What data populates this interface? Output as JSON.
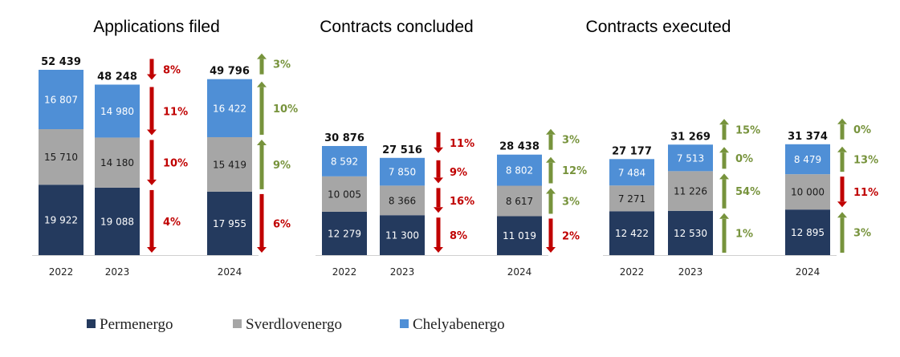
{
  "colors": {
    "Permenergo": "#243a5e",
    "Sverdlovenergo": "#a6a6a6",
    "Chelyabenergo": "#4f8fd6",
    "down": "#c00000",
    "up": "#77933c"
  },
  "legend": [
    {
      "name": "Permenergo",
      "color": "#243a5e"
    },
    {
      "name": "Sverdlovenergo",
      "color": "#a6a6a6"
    },
    {
      "name": "Chelyabenergo",
      "color": "#4f8fd6"
    }
  ],
  "chart_data": [
    {
      "type": "bar",
      "stacked": true,
      "title": "Applications filed",
      "categories": [
        "2022",
        "2023",
        "2024"
      ],
      "series": [
        {
          "name": "Permenergo",
          "values": [
            19922,
            19088,
            17955
          ]
        },
        {
          "name": "Sverdlovenergo",
          "values": [
            15710,
            14180,
            15419
          ]
        },
        {
          "name": "Chelyabenergo",
          "values": [
            16807,
            14980,
            16422
          ]
        }
      ],
      "totals": [
        52439,
        48248,
        49796
      ],
      "totals_labels": [
        "52 439",
        "48 248",
        "49 796"
      ],
      "segment_labels": [
        [
          "19 922",
          "15 710",
          "16 807"
        ],
        [
          "19 088",
          "14 180",
          "14 980"
        ],
        [
          "17 955",
          "15 419",
          "16 422"
        ]
      ],
      "changes": [
        {
          "after": "2023",
          "total": {
            "dir": "down",
            "label": "8%"
          },
          "segments": [
            {
              "dir": "down",
              "label": "4%"
            },
            {
              "dir": "down",
              "label": "10%"
            },
            {
              "dir": "down",
              "label": "11%"
            }
          ]
        },
        {
          "after": "2024",
          "total": {
            "dir": "up",
            "label": "3%"
          },
          "segments": [
            {
              "dir": "down",
              "label": "6%"
            },
            {
              "dir": "up",
              "label": "9%"
            },
            {
              "dir": "up",
              "label": "10%"
            }
          ]
        }
      ]
    },
    {
      "type": "bar",
      "stacked": true,
      "title": "Contracts concluded",
      "categories": [
        "2022",
        "2023",
        "2024"
      ],
      "series": [
        {
          "name": "Permenergo",
          "values": [
            12279,
            11300,
            11019
          ]
        },
        {
          "name": "Sverdlovenergo",
          "values": [
            10005,
            8366,
            8617
          ]
        },
        {
          "name": "Chelyabenergo",
          "values": [
            8592,
            7850,
            8802
          ]
        }
      ],
      "totals": [
        30876,
        27516,
        28438
      ],
      "totals_labels": [
        "30 876",
        "27 516",
        "28 438"
      ],
      "segment_labels": [
        [
          "12 279",
          "10 005",
          "8 592"
        ],
        [
          "11 300",
          "8 366",
          "7 850"
        ],
        [
          "11 019",
          "8 617",
          "8 802"
        ]
      ],
      "changes": [
        {
          "after": "2023",
          "total": {
            "dir": "down",
            "label": "11%"
          },
          "segments": [
            {
              "dir": "down",
              "label": "8%"
            },
            {
              "dir": "down",
              "label": "16%"
            },
            {
              "dir": "down",
              "label": "9%"
            }
          ]
        },
        {
          "after": "2024",
          "total": {
            "dir": "up",
            "label": "3%"
          },
          "segments": [
            {
              "dir": "down",
              "label": "2%"
            },
            {
              "dir": "up",
              "label": "3%"
            },
            {
              "dir": "up",
              "label": "12%"
            }
          ]
        }
      ]
    },
    {
      "type": "bar",
      "stacked": true,
      "title": "Contracts executed",
      "categories": [
        "2022",
        "2023",
        "2024"
      ],
      "series": [
        {
          "name": "Permenergo",
          "values": [
            12422,
            12530,
            12895
          ]
        },
        {
          "name": "Sverdlovenergo",
          "values": [
            7271,
            11226,
            10000
          ]
        },
        {
          "name": "Chelyabenergo",
          "values": [
            7484,
            7513,
            8479
          ]
        }
      ],
      "totals": [
        27177,
        31269,
        31374
      ],
      "totals_labels": [
        "27 177",
        "31 269",
        "31 374"
      ],
      "segment_labels": [
        [
          "12 422",
          "7 271",
          "7 484"
        ],
        [
          "12 530",
          "11 226",
          "7 513"
        ],
        [
          "12 895",
          "10 000",
          "8 479"
        ]
      ],
      "changes": [
        {
          "after": "2023",
          "total": {
            "dir": "up",
            "label": "15%"
          },
          "segments": [
            {
              "dir": "up",
              "label": "1%"
            },
            {
              "dir": "up",
              "label": "54%"
            },
            {
              "dir": "up",
              "label": "0%"
            }
          ]
        },
        {
          "after": "2024",
          "total": {
            "dir": "up",
            "label": "0%"
          },
          "segments": [
            {
              "dir": "up",
              "label": "3%"
            },
            {
              "dir": "down",
              "label": "11%"
            },
            {
              "dir": "up",
              "label": "13%"
            }
          ]
        }
      ]
    }
  ]
}
